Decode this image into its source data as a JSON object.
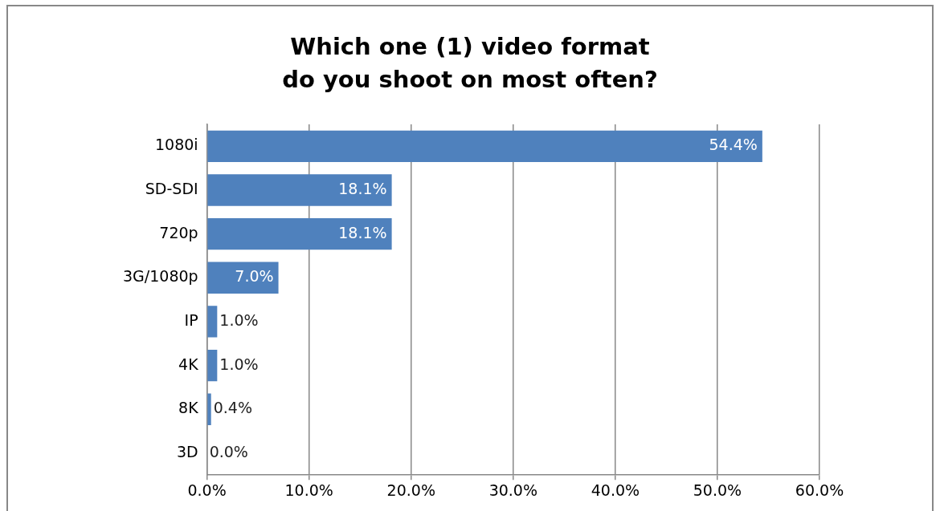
{
  "chart_data": {
    "type": "bar",
    "orientation": "horizontal",
    "title": "Which one (1) video format\ndo you shoot on most often?",
    "categories": [
      "1080i",
      "SD-SDI",
      "720p",
      "3G/1080p",
      "IP",
      "4K",
      "8K",
      "3D"
    ],
    "values": [
      54.4,
      18.1,
      18.1,
      7.0,
      1.0,
      1.0,
      0.4,
      0.0
    ],
    "value_labels": [
      "54.4%",
      "18.1%",
      "18.1%",
      "7.0%",
      "1.0%",
      "1.0%",
      "0.4%",
      "0.0%"
    ],
    "color": "#4f81bd",
    "xlim": [
      0,
      60
    ],
    "xticks": [
      {
        "value": 0,
        "label": "0.0%"
      },
      {
        "value": 10,
        "label": "10.0%"
      },
      {
        "value": 20,
        "label": "20.0%"
      },
      {
        "value": 30,
        "label": "30.0%"
      },
      {
        "value": 40,
        "label": "40.0%"
      },
      {
        "value": 50,
        "label": "50.0%"
      },
      {
        "value": 60,
        "label": "60.0%"
      }
    ],
    "grid": "x"
  }
}
